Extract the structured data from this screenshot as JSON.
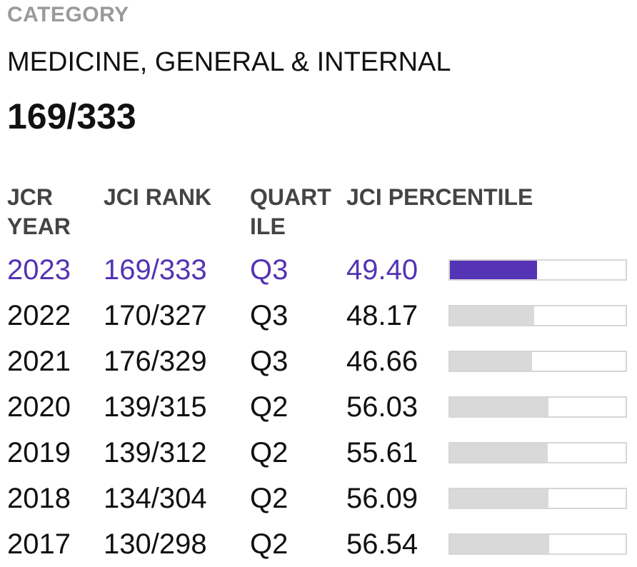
{
  "category": {
    "label": "CATEGORY",
    "name": "MEDICINE, GENERAL & INTERNAL",
    "rank": "169/333"
  },
  "table": {
    "headers": {
      "year": "JCR\nYEAR",
      "rank": "JCI RANK",
      "quartile": "QUART\nILE",
      "percentile": "JCI PERCENTILE"
    },
    "rows": [
      {
        "year": "2023",
        "rank": "169/333",
        "quartile": "Q3",
        "percentile": "49.40",
        "current": true
      },
      {
        "year": "2022",
        "rank": "170/327",
        "quartile": "Q3",
        "percentile": "48.17"
      },
      {
        "year": "2021",
        "rank": "176/329",
        "quartile": "Q3",
        "percentile": "46.66"
      },
      {
        "year": "2020",
        "rank": "139/315",
        "quartile": "Q2",
        "percentile": "56.03"
      },
      {
        "year": "2019",
        "rank": "139/312",
        "quartile": "Q2",
        "percentile": "55.61"
      },
      {
        "year": "2018",
        "rank": "134/304",
        "quartile": "Q2",
        "percentile": "56.09"
      },
      {
        "year": "2017",
        "rank": "130/298",
        "quartile": "Q2",
        "percentile": "56.54"
      }
    ]
  },
  "colors": {
    "accent": "#5433b4",
    "bar_inactive": "#d9d9d9",
    "label_gray": "#9a9a9a"
  }
}
